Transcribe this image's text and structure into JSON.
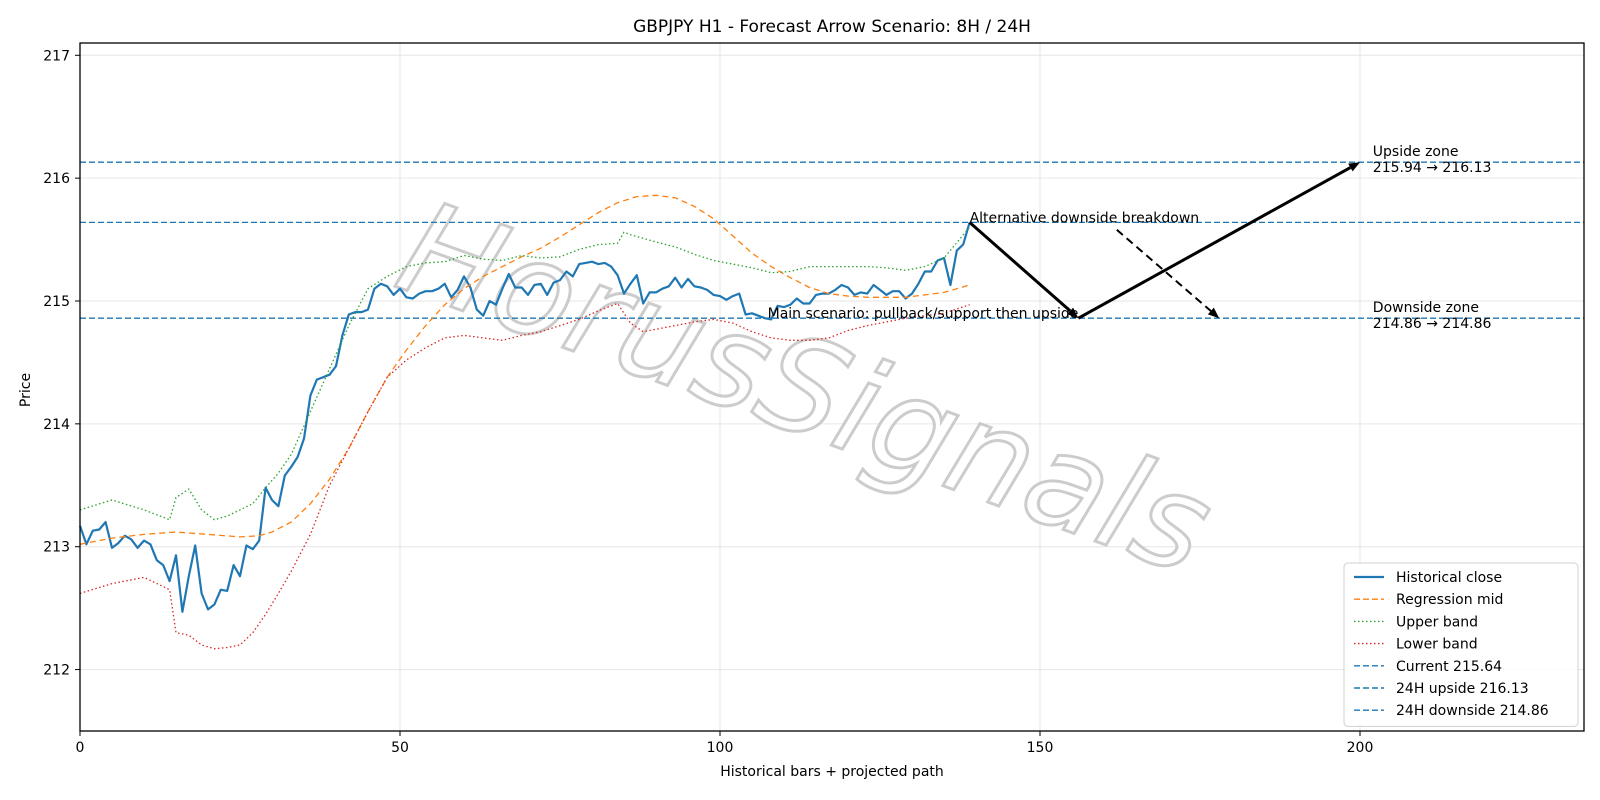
{
  "chart_data": {
    "type": "line",
    "title": "GBPJPY H1 - Forecast Arrow Scenario: 8H / 24H",
    "xlabel": "Historical bars + projected path",
    "ylabel": "Price",
    "xlim": [
      0,
      235
    ],
    "ylim": [
      211.5,
      217.1
    ],
    "xticks": [
      0,
      50,
      100,
      150,
      200
    ],
    "yticks": [
      212,
      213,
      214,
      215,
      216,
      217
    ],
    "grid": true,
    "legend_position": "lower-right",
    "watermark": "HorusSignals",
    "series": [
      {
        "name": "Historical close",
        "style": "solid",
        "color": "#1f77b4",
        "x": [
          0,
          1,
          2,
          3,
          4,
          5,
          6,
          7,
          8,
          9,
          10,
          11,
          12,
          13,
          14,
          15,
          16,
          17,
          18,
          19,
          20,
          21,
          22,
          23,
          24,
          25,
          26,
          27,
          28,
          29,
          30,
          31,
          32,
          33,
          34,
          35,
          36,
          37,
          38,
          39,
          40,
          41,
          42,
          43,
          44,
          45,
          46,
          47,
          48,
          49,
          50,
          51,
          52,
          53,
          54,
          55,
          56,
          57,
          58,
          59,
          60,
          61,
          62,
          63,
          64,
          65,
          66,
          67,
          68,
          69,
          70,
          71,
          72,
          73,
          74,
          75,
          76,
          77,
          78,
          79,
          80,
          81,
          82,
          83,
          84,
          85,
          86,
          87,
          88,
          89,
          90,
          91,
          92,
          93,
          94,
          95,
          96,
          97,
          98,
          99,
          100,
          101,
          102,
          103,
          104,
          105,
          106,
          107,
          108,
          109,
          110,
          111,
          112,
          113,
          114,
          115,
          116,
          117,
          118,
          119,
          120,
          121,
          122,
          123,
          124,
          125,
          126,
          127,
          128,
          129,
          130,
          131,
          132,
          133,
          134,
          135,
          136,
          137,
          138,
          139
        ],
        "y": [
          213.17,
          213.02,
          213.13,
          213.14,
          213.2,
          212.99,
          213.03,
          213.09,
          213.06,
          212.99,
          213.05,
          213.02,
          212.89,
          212.85,
          212.72,
          212.93,
          212.47,
          212.76,
          213.01,
          212.62,
          212.49,
          212.53,
          212.65,
          212.64,
          212.85,
          212.76,
          213.01,
          212.98,
          213.05,
          213.48,
          213.38,
          213.33,
          213.58,
          213.65,
          213.73,
          213.88,
          214.23,
          214.36,
          214.38,
          214.4,
          214.47,
          214.72,
          214.89,
          214.91,
          214.91,
          214.93,
          215.1,
          215.14,
          215.12,
          215.05,
          215.1,
          215.03,
          215.02,
          215.06,
          215.08,
          215.08,
          215.1,
          215.14,
          215.03,
          215.09,
          215.2,
          215.11,
          214.93,
          214.88,
          215.0,
          214.97,
          215.1,
          215.22,
          215.11,
          215.11,
          215.05,
          215.13,
          215.14,
          215.05,
          215.15,
          215.17,
          215.24,
          215.2,
          215.3,
          215.31,
          215.32,
          215.3,
          215.31,
          215.28,
          215.21,
          215.06,
          215.14,
          215.21,
          214.98,
          215.07,
          215.07,
          215.1,
          215.12,
          215.19,
          215.11,
          215.18,
          215.12,
          215.11,
          215.09,
          215.05,
          215.04,
          215.01,
          215.04,
          215.06,
          214.89,
          214.9,
          214.88,
          214.86,
          214.85,
          214.96,
          214.95,
          214.97,
          215.02,
          214.98,
          214.98,
          215.05,
          215.06,
          215.06,
          215.09,
          215.13,
          215.11,
          215.05,
          215.07,
          215.06,
          215.13,
          215.09,
          215.05,
          215.08,
          215.08,
          215.02,
          215.06,
          215.14,
          215.24,
          215.24,
          215.33,
          215.35,
          215.13,
          215.41,
          215.46,
          215.64
        ]
      },
      {
        "name": "Regression mid",
        "style": "dashed",
        "color": "#ff7f0e",
        "x": [
          0,
          5,
          10,
          15,
          20,
          25,
          28,
          30,
          33,
          36,
          39,
          42,
          45,
          48,
          51,
          54,
          57,
          60,
          63,
          66,
          69,
          72,
          75,
          78,
          81,
          84,
          87,
          90,
          93,
          96,
          99,
          102,
          105,
          108,
          111,
          114,
          117,
          120,
          123,
          126,
          129,
          132,
          135,
          139
        ],
        "y": [
          213.02,
          213.07,
          213.1,
          213.12,
          213.1,
          213.08,
          213.09,
          213.12,
          213.2,
          213.35,
          213.55,
          213.8,
          214.1,
          214.38,
          214.6,
          214.8,
          214.97,
          215.1,
          215.2,
          215.28,
          215.36,
          215.43,
          215.52,
          215.62,
          215.72,
          215.8,
          215.85,
          215.86,
          215.84,
          215.77,
          215.67,
          215.53,
          215.39,
          215.28,
          215.19,
          215.11,
          215.06,
          215.04,
          215.03,
          215.03,
          215.03,
          215.05,
          215.07,
          215.13
        ]
      },
      {
        "name": "Upper band",
        "style": "dotted",
        "color": "#2ca02c",
        "x": [
          0,
          5,
          10,
          14,
          15,
          17,
          19,
          21,
          23,
          25,
          27,
          29,
          31,
          33,
          36,
          39,
          42,
          45,
          48,
          51,
          54,
          57,
          60,
          63,
          66,
          69,
          72,
          75,
          78,
          81,
          84,
          85,
          86,
          90,
          93,
          96,
          99,
          102,
          105,
          108,
          111,
          114,
          117,
          120,
          123,
          126,
          129,
          132,
          135,
          139
        ],
        "y": [
          213.3,
          213.38,
          213.3,
          213.22,
          213.4,
          213.47,
          213.3,
          213.22,
          213.25,
          213.3,
          213.35,
          213.48,
          213.6,
          213.75,
          214.1,
          214.45,
          214.8,
          215.1,
          215.2,
          215.28,
          215.31,
          215.32,
          215.37,
          215.34,
          215.33,
          215.37,
          215.35,
          215.36,
          215.42,
          215.46,
          215.47,
          215.56,
          215.54,
          215.48,
          215.44,
          215.38,
          215.33,
          215.3,
          215.27,
          215.23,
          215.24,
          215.28,
          215.28,
          215.28,
          215.28,
          215.27,
          215.25,
          215.28,
          215.35,
          215.6
        ]
      },
      {
        "name": "Lower band",
        "style": "dotted",
        "color": "#d62728",
        "x": [
          0,
          5,
          10,
          14,
          15,
          17,
          19,
          21,
          23,
          25,
          27,
          29,
          31,
          33,
          36,
          39,
          42,
          45,
          48,
          51,
          54,
          57,
          60,
          63,
          66,
          69,
          72,
          75,
          78,
          81,
          84,
          86,
          88,
          90,
          93,
          96,
          99,
          102,
          105,
          108,
          111,
          114,
          117,
          120,
          123,
          126,
          129,
          132,
          135,
          139
        ],
        "y": [
          212.62,
          212.7,
          212.75,
          212.65,
          212.3,
          212.28,
          212.2,
          212.17,
          212.18,
          212.2,
          212.3,
          212.45,
          212.62,
          212.8,
          213.1,
          213.5,
          213.8,
          214.1,
          214.38,
          214.52,
          214.62,
          214.7,
          214.72,
          214.7,
          214.68,
          214.72,
          214.75,
          214.8,
          214.85,
          214.92,
          214.98,
          214.82,
          214.75,
          214.77,
          214.8,
          214.83,
          214.85,
          214.82,
          214.75,
          214.7,
          214.68,
          214.68,
          214.7,
          214.76,
          214.8,
          214.83,
          214.86,
          214.88,
          214.9,
          214.97
        ]
      }
    ],
    "hlines": [
      {
        "name": "Current 215.64",
        "y": 215.64,
        "style": "dashed",
        "color": "#1f77b4"
      },
      {
        "name": "24H upside 216.13",
        "y": 216.13,
        "style": "dashed",
        "color": "#1f77b4"
      },
      {
        "name": "24H downside 214.86",
        "y": 214.86,
        "style": "dashed",
        "color": "#1f77b4"
      }
    ],
    "arrows": [
      {
        "from": [
          139,
          215.64
        ],
        "to": [
          156,
          214.86
        ],
        "style": "solid"
      },
      {
        "from": [
          156,
          214.86
        ],
        "to": [
          200,
          216.13
        ],
        "style": "solid"
      },
      {
        "from": [
          162,
          215.58
        ],
        "to": [
          178,
          214.86
        ],
        "style": "dashed"
      }
    ],
    "annotations": [
      {
        "text": "Alternative downside breakdown",
        "x": 139,
        "y": 215.64,
        "anchor": "start"
      },
      {
        "text": "Main scenario: pullback/support then upside",
        "x": 156,
        "y": 214.86,
        "anchor": "end"
      },
      {
        "text": "Upside zone",
        "x": 202,
        "y": 216.18,
        "anchor": "start"
      },
      {
        "text": "215.94 → 216.13",
        "x": 202,
        "y": 216.05,
        "anchor": "start"
      },
      {
        "text": "Downside zone",
        "x": 202,
        "y": 214.91,
        "anchor": "start"
      },
      {
        "text": "214.86 → 214.86",
        "x": 202,
        "y": 214.78,
        "anchor": "start"
      }
    ]
  }
}
